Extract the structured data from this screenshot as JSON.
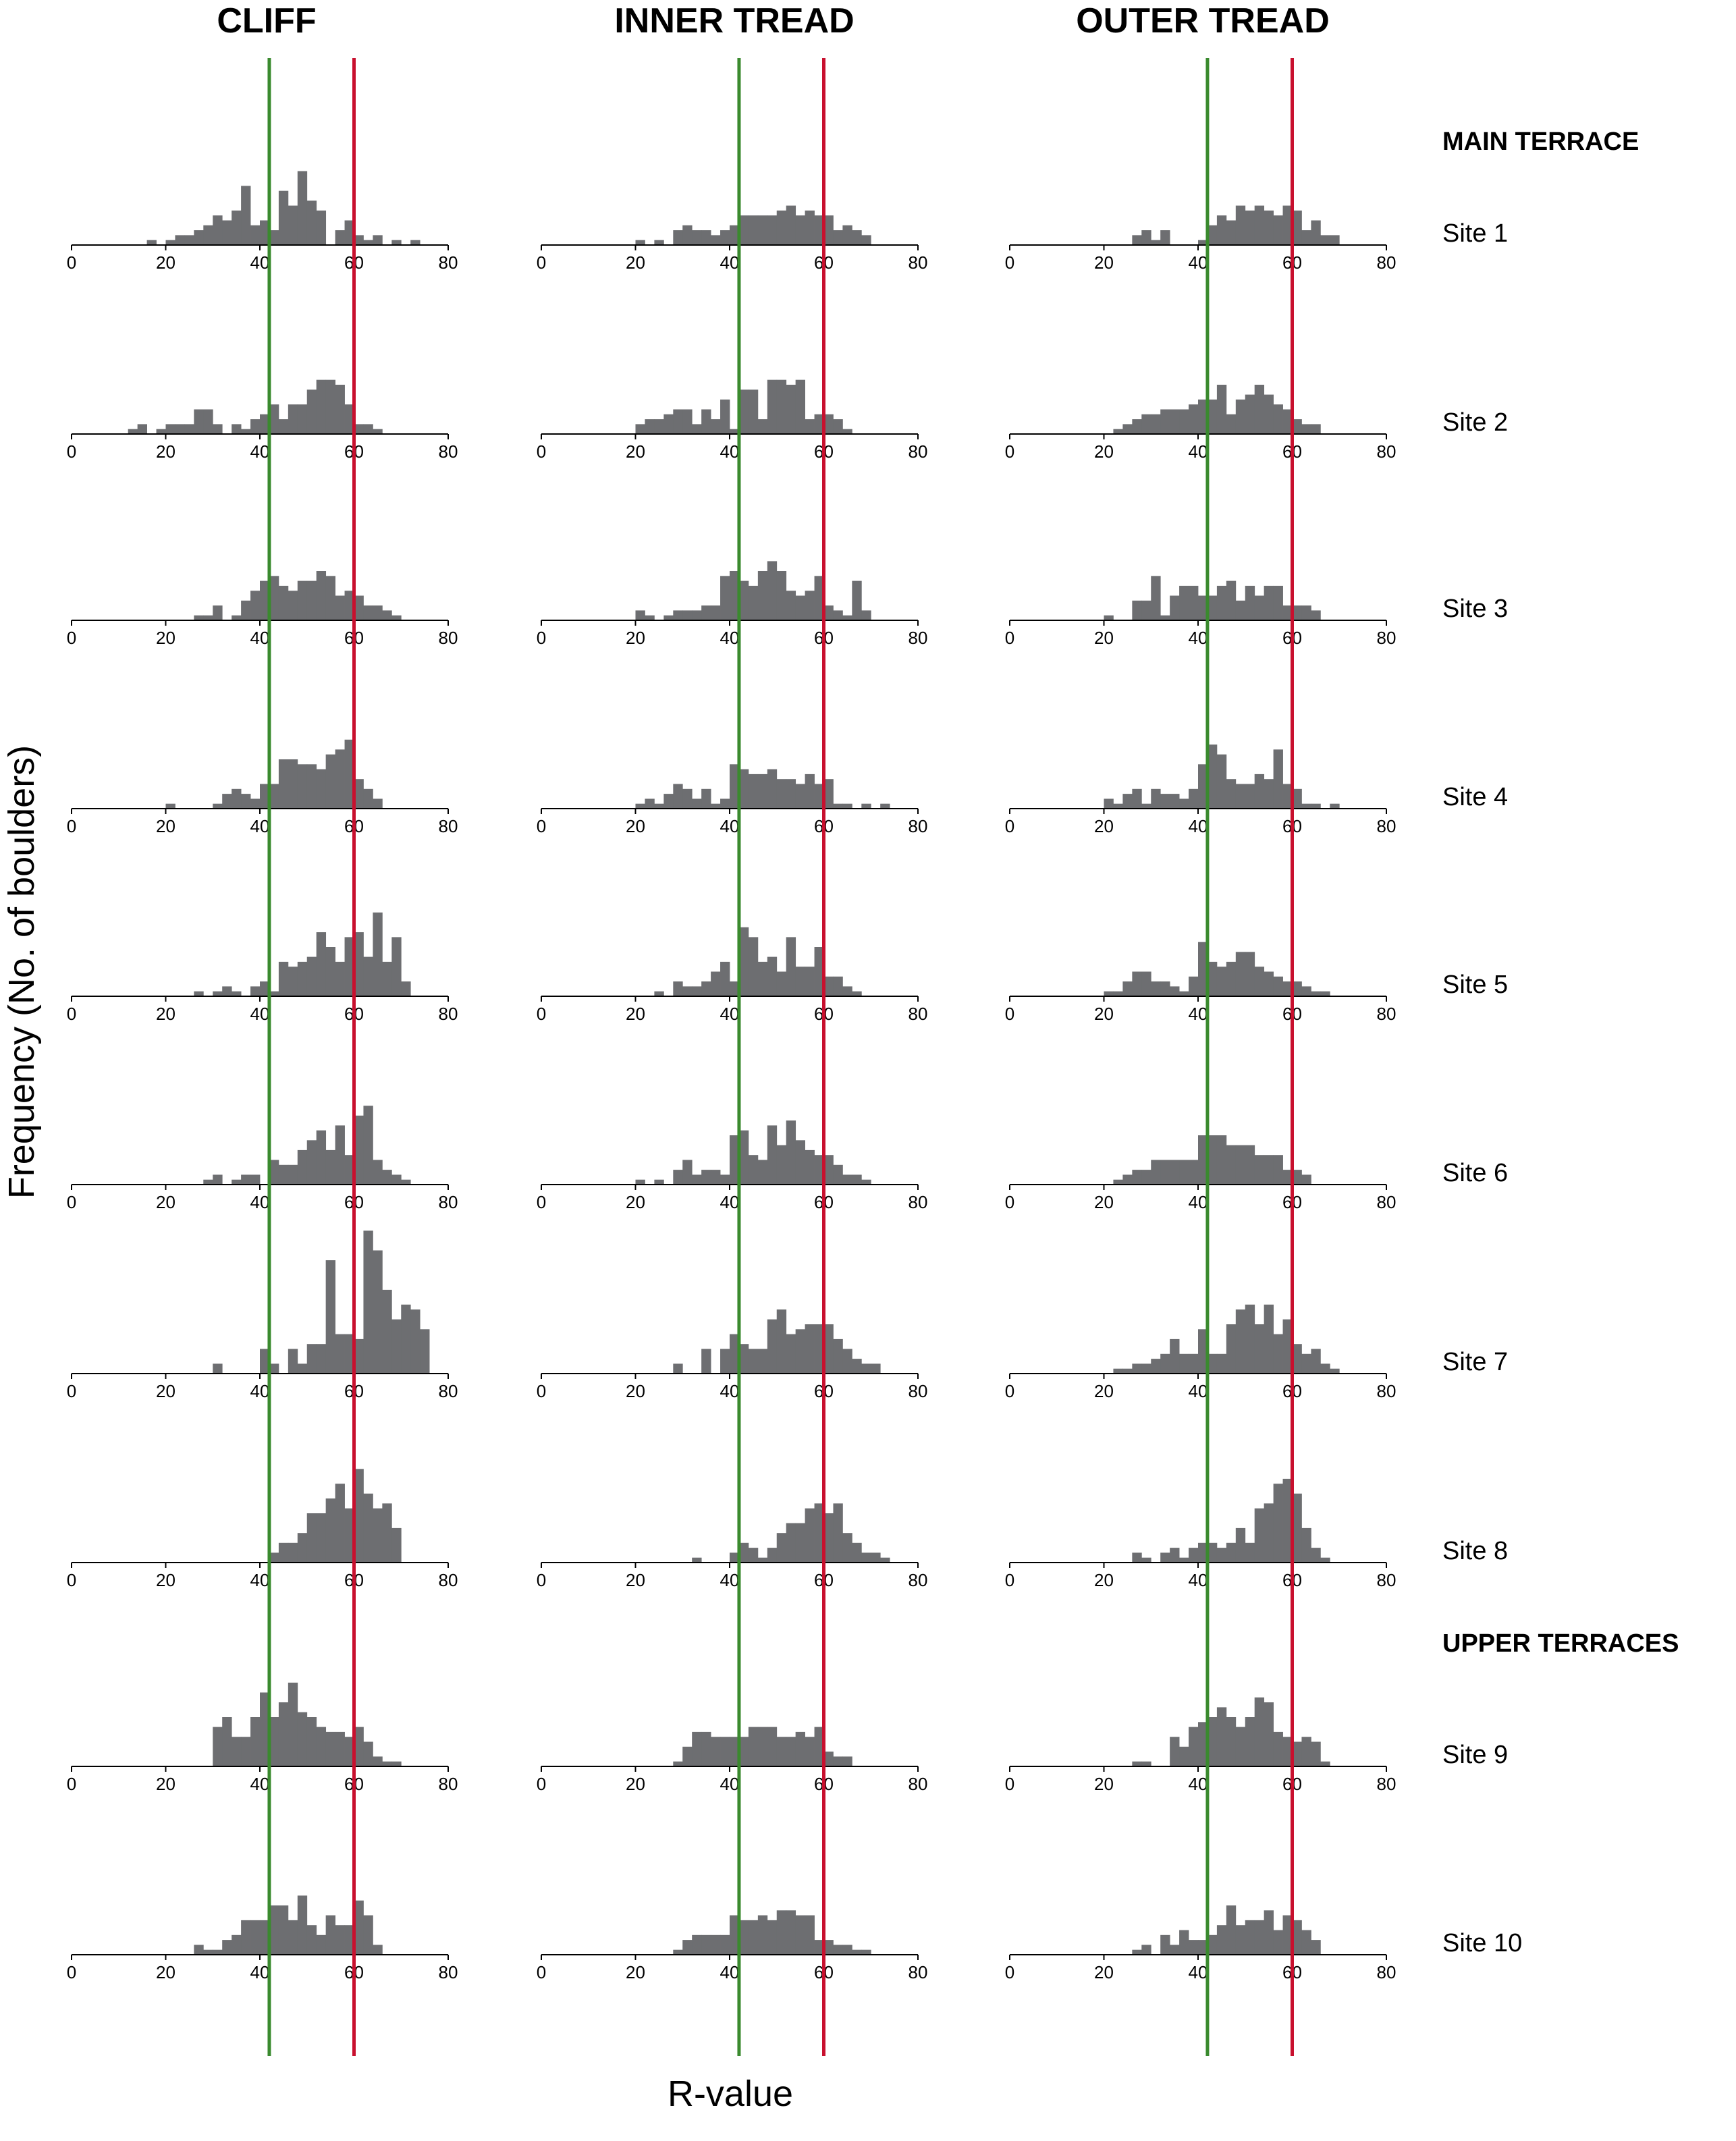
{
  "columns": [
    "CLIFF",
    "INNER TREAD",
    "OUTER TREAD"
  ],
  "groups": {
    "main": "MAIN TERRACE",
    "upper": "UPPER TERRACES"
  },
  "sites": [
    "Site 1",
    "Site 2",
    "Site 3",
    "Site 4",
    "Site 5",
    "Site 6",
    "Site 7",
    "Site 8",
    "Site 9",
    "Site 10"
  ],
  "ylabel": "Frequency (No. of boulders)",
  "xlabel": "R-value",
  "reference_lines": [
    {
      "value": 42,
      "color": "#3a8a2e"
    },
    {
      "value": 60,
      "color": "#c8102e"
    }
  ],
  "colors": {
    "bars": "#6d6e71"
  },
  "chart_data": {
    "type": "bar",
    "x_ticks": [
      0,
      20,
      40,
      60,
      80
    ],
    "xlim": [
      0,
      80
    ],
    "bin_width": 2,
    "bin_starts": [
      12,
      14,
      16,
      18,
      20,
      22,
      24,
      26,
      28,
      30,
      32,
      34,
      36,
      38,
      40,
      42,
      44,
      46,
      48,
      50,
      52,
      54,
      56,
      58,
      60,
      62,
      64,
      66,
      68,
      70,
      72,
      74
    ],
    "panels": [
      {
        "site": "Site 1",
        "column": "CLIFF",
        "values": [
          0,
          0,
          1,
          0,
          1,
          2,
          2,
          3,
          4,
          6,
          5,
          7,
          12,
          4,
          5,
          3,
          11,
          8,
          15,
          9,
          7,
          0,
          3,
          5,
          2,
          1,
          2,
          0,
          1,
          0,
          1,
          0
        ]
      },
      {
        "site": "Site 1",
        "column": "INNER TREAD",
        "values": [
          0,
          0,
          0,
          0,
          1,
          0,
          1,
          0,
          3,
          4,
          3,
          3,
          2,
          3,
          4,
          6,
          6,
          6,
          6,
          7,
          8,
          6,
          7,
          6,
          6,
          3,
          4,
          3,
          2,
          0,
          0,
          0
        ]
      },
      {
        "site": "Site 1",
        "column": "OUTER TREAD",
        "values": [
          0,
          0,
          0,
          0,
          0,
          0,
          0,
          2,
          3,
          1,
          3,
          0,
          0,
          0,
          1,
          4,
          6,
          5,
          8,
          7,
          8,
          7,
          6,
          8,
          7,
          3,
          5,
          2,
          2,
          0,
          0,
          0
        ]
      },
      {
        "site": "Site 2",
        "column": "CLIFF",
        "values": [
          1,
          2,
          0,
          1,
          2,
          2,
          2,
          5,
          5,
          2,
          0,
          2,
          1,
          3,
          4,
          6,
          3,
          6,
          6,
          9,
          11,
          11,
          10,
          6,
          2,
          2,
          1,
          0,
          0,
          0,
          0,
          0
        ]
      },
      {
        "site": "Site 2",
        "column": "INNER TREAD",
        "values": [
          0,
          0,
          0,
          0,
          2,
          3,
          3,
          4,
          5,
          5,
          2,
          5,
          3,
          7,
          1,
          9,
          9,
          3,
          11,
          11,
          10,
          11,
          3,
          4,
          4,
          3,
          1,
          0,
          0,
          0,
          0,
          0
        ]
      },
      {
        "site": "Site 2",
        "column": "OUTER TREAD",
        "values": [
          0,
          0,
          0,
          0,
          0,
          1,
          2,
          3,
          4,
          4,
          5,
          5,
          5,
          6,
          7,
          7,
          10,
          4,
          7,
          8,
          10,
          8,
          6,
          5,
          3,
          2,
          2,
          0,
          0,
          0,
          0,
          0
        ]
      },
      {
        "site": "Site 3",
        "column": "CLIFF",
        "values": [
          0,
          0,
          0,
          0,
          0,
          0,
          0,
          1,
          1,
          3,
          0,
          1,
          4,
          6,
          8,
          9,
          7,
          6,
          8,
          8,
          10,
          9,
          5,
          6,
          5,
          3,
          3,
          2,
          1,
          0,
          0,
          0
        ]
      },
      {
        "site": "Site 3",
        "column": "INNER TREAD",
        "values": [
          0,
          0,
          0,
          0,
          2,
          1,
          0,
          1,
          2,
          2,
          2,
          3,
          3,
          9,
          10,
          8,
          7,
          10,
          12,
          10,
          6,
          5,
          6,
          9,
          3,
          2,
          1,
          8,
          2,
          0,
          0,
          0
        ]
      },
      {
        "site": "Site 3",
        "column": "OUTER TREAD",
        "values": [
          0,
          0,
          0,
          0,
          1,
          0,
          0,
          4,
          4,
          9,
          1,
          5,
          7,
          7,
          5,
          5,
          7,
          8,
          4,
          7,
          5,
          7,
          7,
          3,
          3,
          3,
          2,
          0,
          0,
          0,
          0,
          0
        ]
      },
      {
        "site": "Site 4",
        "column": "CLIFF",
        "values": [
          0,
          0,
          0,
          0,
          1,
          0,
          0,
          0,
          0,
          1,
          3,
          4,
          3,
          2,
          5,
          5,
          10,
          10,
          9,
          9,
          8,
          11,
          12,
          14,
          6,
          4,
          2,
          0,
          0,
          0,
          0,
          0
        ]
      },
      {
        "site": "Site 4",
        "column": "INNER TREAD",
        "values": [
          0,
          0,
          0,
          0,
          1,
          2,
          1,
          3,
          5,
          4,
          2,
          4,
          1,
          2,
          9,
          8,
          7,
          7,
          8,
          6,
          6,
          5,
          7,
          5,
          6,
          1,
          1,
          0,
          1,
          0,
          1,
          0
        ]
      },
      {
        "site": "Site 4",
        "column": "OUTER TREAD",
        "values": [
          0,
          0,
          0,
          0,
          2,
          1,
          3,
          4,
          1,
          4,
          3,
          3,
          2,
          4,
          9,
          13,
          11,
          6,
          5,
          5,
          7,
          6,
          12,
          5,
          4,
          1,
          1,
          0,
          1,
          0,
          0,
          0
        ]
      },
      {
        "site": "Site 5",
        "column": "CLIFF",
        "values": [
          0,
          0,
          0,
          0,
          0,
          0,
          0,
          1,
          0,
          1,
          2,
          1,
          0,
          2,
          3,
          1,
          7,
          6,
          7,
          8,
          13,
          10,
          7,
          12,
          13,
          8,
          17,
          7,
          12,
          3,
          0,
          0
        ]
      },
      {
        "site": "Site 5",
        "column": "INNER TREAD",
        "values": [
          0,
          0,
          0,
          0,
          0,
          0,
          1,
          0,
          3,
          2,
          2,
          3,
          5,
          7,
          3,
          14,
          12,
          7,
          8,
          5,
          12,
          6,
          6,
          10,
          4,
          4,
          2,
          1,
          0,
          0,
          0,
          0
        ]
      },
      {
        "site": "Site 5",
        "column": "OUTER TREAD",
        "values": [
          0,
          0,
          0,
          0,
          1,
          1,
          3,
          5,
          5,
          3,
          3,
          2,
          1,
          4,
          11,
          7,
          6,
          7,
          9,
          9,
          6,
          5,
          4,
          3,
          3,
          2,
          1,
          1,
          0,
          0,
          0,
          0
        ]
      },
      {
        "site": "Site 6",
        "column": "CLIFF",
        "values": [
          0,
          0,
          0,
          0,
          0,
          0,
          0,
          0,
          1,
          2,
          0,
          1,
          2,
          2,
          0,
          5,
          4,
          4,
          7,
          9,
          11,
          7,
          12,
          6,
          14,
          16,
          5,
          3,
          2,
          1,
          0,
          0
        ]
      },
      {
        "site": "Site 6",
        "column": "INNER TREAD",
        "values": [
          0,
          0,
          0,
          0,
          1,
          0,
          1,
          0,
          3,
          5,
          2,
          3,
          3,
          2,
          10,
          11,
          6,
          5,
          12,
          8,
          13,
          9,
          7,
          6,
          6,
          4,
          2,
          2,
          1,
          0,
          0,
          0
        ]
      },
      {
        "site": "Site 6",
        "column": "OUTER TREAD",
        "values": [
          0,
          0,
          0,
          0,
          0,
          1,
          2,
          3,
          3,
          5,
          5,
          5,
          5,
          5,
          10,
          10,
          10,
          8,
          8,
          8,
          6,
          6,
          6,
          3,
          3,
          2,
          0,
          0,
          0,
          0,
          0,
          0
        ]
      },
      {
        "site": "Site 7",
        "column": "CLIFF",
        "values": [
          0,
          0,
          0,
          0,
          0,
          0,
          0,
          0,
          0,
          2,
          0,
          0,
          0,
          0,
          5,
          2,
          0,
          5,
          2,
          6,
          6,
          23,
          8,
          8,
          7,
          29,
          25,
          17,
          11,
          14,
          13,
          9
        ]
      },
      {
        "site": "Site 7",
        "column": "INNER TREAD",
        "values": [
          0,
          0,
          0,
          0,
          0,
          0,
          0,
          0,
          2,
          0,
          0,
          5,
          0,
          5,
          8,
          6,
          5,
          5,
          11,
          13,
          8,
          9,
          10,
          10,
          10,
          7,
          5,
          3,
          2,
          2,
          0,
          0
        ]
      },
      {
        "site": "Site 7",
        "column": "OUTER TREAD",
        "values": [
          0,
          0,
          0,
          0,
          0,
          1,
          1,
          2,
          2,
          3,
          4,
          7,
          4,
          4,
          9,
          4,
          4,
          10,
          13,
          14,
          10,
          14,
          8,
          11,
          6,
          4,
          5,
          2,
          1,
          0,
          0,
          0
        ]
      },
      {
        "site": "Site 8",
        "column": "CLIFF",
        "values": [
          0,
          0,
          0,
          0,
          0,
          0,
          0,
          0,
          0,
          0,
          0,
          0,
          0,
          0,
          0,
          2,
          4,
          4,
          6,
          10,
          10,
          13,
          16,
          11,
          19,
          14,
          11,
          12,
          7,
          0,
          0,
          0
        ]
      },
      {
        "site": "Site 8",
        "column": "INNER TREAD",
        "values": [
          0,
          0,
          0,
          0,
          0,
          0,
          0,
          0,
          0,
          0,
          1,
          0,
          0,
          0,
          2,
          4,
          3,
          1,
          3,
          6,
          8,
          8,
          11,
          12,
          10,
          12,
          6,
          4,
          2,
          2,
          1,
          0
        ]
      },
      {
        "site": "Site 8",
        "column": "OUTER TREAD",
        "values": [
          0,
          0,
          0,
          0,
          0,
          0,
          0,
          2,
          1,
          0,
          2,
          3,
          1,
          3,
          4,
          4,
          3,
          4,
          7,
          4,
          11,
          12,
          16,
          17,
          14,
          7,
          3,
          1,
          0,
          0,
          0,
          0
        ]
      },
      {
        "site": "Site 9",
        "column": "CLIFF",
        "values": [
          0,
          0,
          0,
          0,
          0,
          0,
          0,
          0,
          0,
          8,
          10,
          6,
          6,
          10,
          15,
          10,
          13,
          17,
          11,
          10,
          8,
          7,
          7,
          6,
          8,
          5,
          2,
          1,
          1,
          0,
          0,
          0
        ]
      },
      {
        "site": "Site 9",
        "column": "INNER TREAD",
        "values": [
          0,
          0,
          0,
          0,
          0,
          0,
          0,
          0,
          1,
          4,
          7,
          7,
          6,
          6,
          6,
          6,
          8,
          8,
          8,
          6,
          6,
          7,
          6,
          8,
          3,
          2,
          2,
          0,
          0,
          0,
          0,
          0
        ]
      },
      {
        "site": "Site 9",
        "column": "OUTER TREAD",
        "values": [
          0,
          0,
          0,
          0,
          0,
          0,
          0,
          1,
          1,
          0,
          0,
          6,
          4,
          8,
          9,
          10,
          12,
          10,
          8,
          10,
          14,
          13,
          7,
          6,
          5,
          6,
          5,
          1,
          0,
          0,
          0,
          0
        ]
      },
      {
        "site": "Site 10",
        "column": "CLIFF",
        "values": [
          0,
          0,
          0,
          0,
          0,
          0,
          0,
          2,
          1,
          1,
          3,
          4,
          7,
          7,
          7,
          10,
          10,
          7,
          12,
          6,
          4,
          8,
          6,
          6,
          11,
          8,
          2,
          0,
          0,
          0,
          0,
          0
        ]
      },
      {
        "site": "Site 10",
        "column": "INNER TREAD",
        "values": [
          0,
          0,
          0,
          0,
          0,
          0,
          0,
          0,
          1,
          3,
          4,
          4,
          4,
          4,
          8,
          7,
          7,
          8,
          7,
          9,
          9,
          8,
          8,
          3,
          3,
          2,
          2,
          1,
          1,
          0,
          0,
          0
        ]
      },
      {
        "site": "Site 10",
        "column": "OUTER TREAD",
        "values": [
          0,
          0,
          0,
          0,
          0,
          0,
          0,
          1,
          2,
          0,
          4,
          2,
          5,
          3,
          3,
          4,
          6,
          10,
          6,
          7,
          7,
          9,
          5,
          8,
          7,
          5,
          3,
          0,
          0,
          0,
          0,
          0
        ]
      }
    ]
  }
}
